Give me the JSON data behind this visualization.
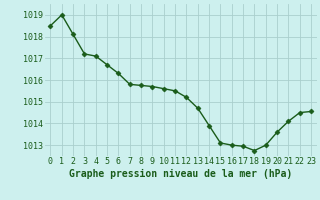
{
  "hours": [
    0,
    1,
    2,
    3,
    4,
    5,
    6,
    7,
    8,
    9,
    10,
    11,
    12,
    13,
    14,
    15,
    16,
    17,
    18,
    19,
    20,
    21,
    22,
    23
  ],
  "pressure": [
    1018.5,
    1019.0,
    1018.1,
    1017.2,
    1017.1,
    1016.7,
    1016.3,
    1015.8,
    1015.75,
    1015.7,
    1015.6,
    1015.5,
    1015.2,
    1014.7,
    1013.9,
    1013.1,
    1013.0,
    1012.95,
    1012.75,
    1013.0,
    1013.6,
    1014.1,
    1014.5,
    1014.55
  ],
  "line_color": "#1a5c1a",
  "marker": "D",
  "marker_size": 2.5,
  "bg_color": "#cdf0ee",
  "grid_color": "#aacfcd",
  "ylim_min": 1012.5,
  "ylim_max": 1019.5,
  "yticks": [
    1013,
    1014,
    1015,
    1016,
    1017,
    1018,
    1019
  ],
  "xlabel": "Graphe pression niveau de la mer (hPa)",
  "xlabel_fontsize": 7,
  "tick_fontsize": 6,
  "linewidth": 1.0
}
